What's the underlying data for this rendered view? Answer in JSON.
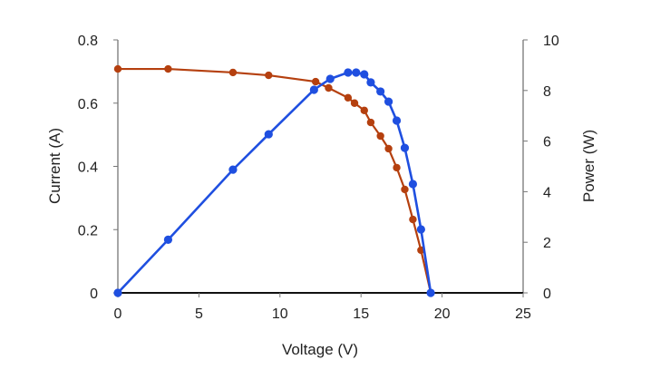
{
  "chart_data": {
    "type": "line",
    "title": "",
    "xlabel": "Voltage (V)",
    "ylabel": "Current (A)",
    "y2label": "Power (W)",
    "xlim": [
      0,
      25
    ],
    "ylim": [
      0,
      0.8
    ],
    "y2lim": [
      0,
      10
    ],
    "xticks": [
      "0",
      "5",
      "10",
      "15",
      "20",
      "25"
    ],
    "yticks": [
      "0",
      "0.2",
      "0.4",
      "0.6",
      "0.8"
    ],
    "y2ticks": [
      "0",
      "2",
      "4",
      "6",
      "8",
      "10"
    ],
    "grid": false,
    "legend": "none",
    "series": [
      {
        "axis": "left",
        "color": "#b5400f",
        "x": [
          0,
          3.1,
          7.1,
          9.3,
          12.2,
          13.0,
          14.2,
          14.6,
          15.2,
          15.6,
          16.2,
          16.7,
          17.2,
          17.7,
          18.2,
          18.7,
          19.3
        ],
        "y": [
          0.708,
          0.708,
          0.697,
          0.688,
          0.668,
          0.648,
          0.617,
          0.6,
          0.577,
          0.539,
          0.496,
          0.456,
          0.396,
          0.327,
          0.232,
          0.135,
          0
        ]
      },
      {
        "axis": "right",
        "color": "#1f4fe0",
        "x": [
          0,
          3.1,
          7.1,
          9.3,
          12.1,
          13.1,
          14.2,
          14.7,
          15.2,
          15.6,
          16.2,
          16.7,
          17.2,
          17.7,
          18.2,
          18.7,
          19.3
        ],
        "y": [
          0,
          2.1,
          4.87,
          6.27,
          8.03,
          8.46,
          8.71,
          8.71,
          8.64,
          8.32,
          7.96,
          7.56,
          6.81,
          5.73,
          4.3,
          2.51,
          0
        ]
      }
    ]
  }
}
